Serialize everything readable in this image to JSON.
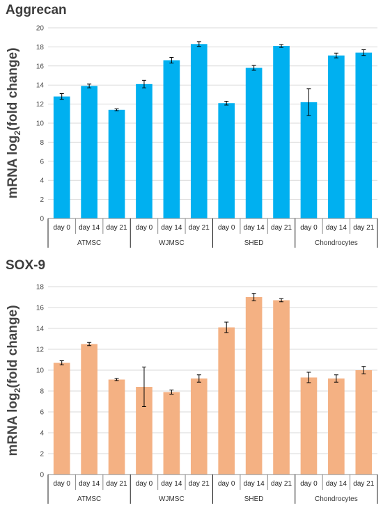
{
  "chart_data": [
    {
      "type": "bar",
      "title": "Aggrecan",
      "ylabel": "mRNA log",
      "ylabel_sub": "2",
      "ylabel_rest": "(fold change)",
      "ylim": [
        0,
        20
      ],
      "ystep": 2,
      "grid": true,
      "color": "#00b0f0",
      "groups": [
        "ATMSC",
        "WJMSC",
        "SHED",
        "Chondrocytes"
      ],
      "categories": [
        "day 0",
        "day 14",
        "day 21",
        "day 0",
        "day 14",
        "day 21",
        "day 0",
        "day 14",
        "day 21",
        "day 0",
        "day 14",
        "day 21"
      ],
      "values": [
        12.8,
        13.9,
        11.4,
        14.1,
        16.6,
        18.3,
        12.1,
        15.8,
        18.1,
        12.2,
        17.1,
        17.4
      ],
      "errors": [
        0.3,
        0.2,
        0.1,
        0.4,
        0.3,
        0.25,
        0.2,
        0.25,
        0.15,
        1.4,
        0.25,
        0.3
      ]
    },
    {
      "type": "bar",
      "title": "SOX-9",
      "ylabel": "mRNA log",
      "ylabel_sub": "2",
      "ylabel_rest": "(fold change)",
      "ylim": [
        0,
        18
      ],
      "ystep": 2,
      "grid": true,
      "color": "#f4b183",
      "groups": [
        "ATMSC",
        "WJMSC",
        "SHED",
        "Chondrocytes"
      ],
      "categories": [
        "day 0",
        "day 14",
        "day 21",
        "day 0",
        "day 14",
        "day 21",
        "day 0",
        "day 14",
        "day 21",
        "day 0",
        "day 14",
        "day 21"
      ],
      "values": [
        10.7,
        12.5,
        9.1,
        8.4,
        7.9,
        9.2,
        14.1,
        17.0,
        16.7,
        9.3,
        9.2,
        10.0
      ],
      "errors": [
        0.2,
        0.15,
        0.1,
        1.9,
        0.2,
        0.35,
        0.5,
        0.35,
        0.15,
        0.5,
        0.35,
        0.35
      ]
    }
  ]
}
